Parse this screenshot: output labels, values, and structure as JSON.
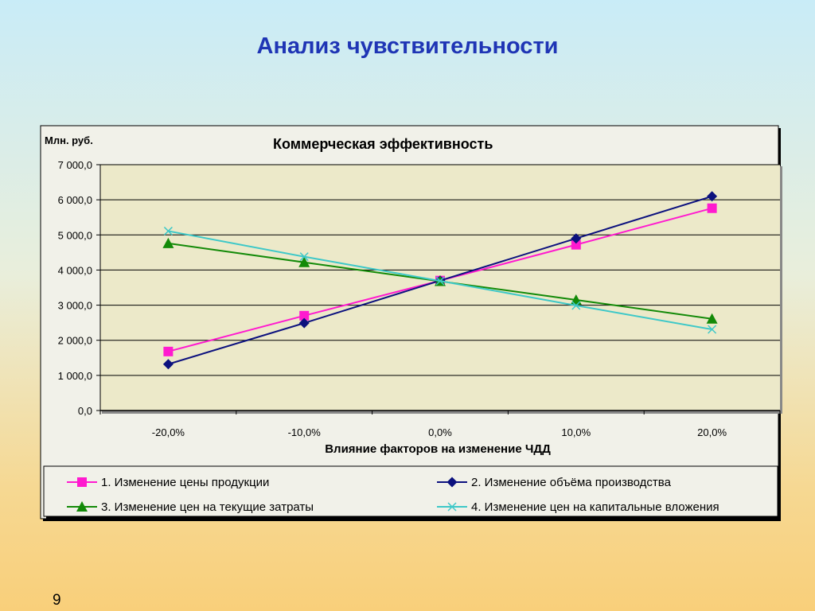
{
  "slide": {
    "title": "Анализ чувствительности",
    "page_number": "9"
  },
  "chart_data": {
    "type": "line",
    "title": "Коммерческая эффективность",
    "ylabel": "Млн. руб.",
    "xlabel": "Влияние факторов на изменение ЧДД",
    "categories": [
      "-20,0%",
      "-10,0%",
      "0,0%",
      "10,0%",
      "20,0%"
    ],
    "ylim": [
      0,
      7000
    ],
    "yticks": [
      0,
      1000,
      2000,
      3000,
      4000,
      5000,
      6000,
      7000
    ],
    "ytick_labels": [
      "0,0",
      "1 000,0",
      "2 000,0",
      "3 000,0",
      "4 000,0",
      "5 000,0",
      "6 000,0",
      "7 000,0"
    ],
    "grid": true,
    "legend_position": "bottom",
    "series": [
      {
        "name": "1. Изменение цены продукции",
        "values": [
          1680,
          2700,
          3700,
          4720,
          5760
        ],
        "color": "#ff1acf",
        "marker": "square"
      },
      {
        "name": "2. Изменение объёма производства",
        "values": [
          1320,
          2490,
          3700,
          4900,
          6100
        ],
        "color": "#0c117e",
        "marker": "diamond"
      },
      {
        "name": "3. Изменение цен на текущие затраты",
        "values": [
          4760,
          4220,
          3680,
          3150,
          2610
        ],
        "color": "#138a08",
        "marker": "triangle"
      },
      {
        "name": "4. Изменение цен на капитальные вложения",
        "values": [
          5110,
          4380,
          3690,
          2990,
          2310
        ],
        "color": "#3ec8c8",
        "marker": "x"
      }
    ]
  }
}
